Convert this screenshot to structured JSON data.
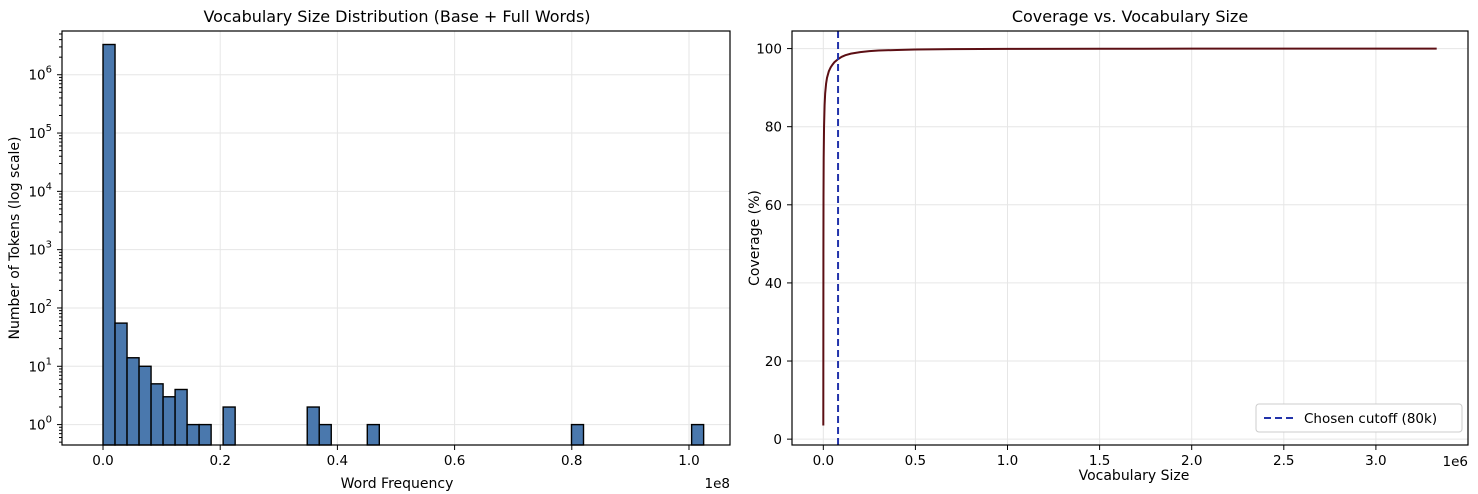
{
  "colors": {
    "bar_fill": "#4a78ad",
    "bar_edge": "#000000",
    "coverage_line": "#5c0f14",
    "cutoff_line": "#2233aa",
    "grid": "#e6e6e6"
  },
  "chart_data": [
    {
      "type": "bar",
      "title": "Vocabulary Size Distribution (Base + Full Words)",
      "xlabel": "Word Frequency",
      "ylabel": "Number of Tokens (log scale)",
      "x_offset_text": "1e8",
      "yscale": "log",
      "xlim": [
        -0.07,
        1.07
      ],
      "ylim_exp": [
        -0.35,
        6.75
      ],
      "grid": true,
      "x_ticks": [
        {
          "value": 0.0,
          "label": "0.0"
        },
        {
          "value": 0.2,
          "label": "0.2"
        },
        {
          "value": 0.4,
          "label": "0.4"
        },
        {
          "value": 0.6,
          "label": "0.6"
        },
        {
          "value": 0.8,
          "label": "0.8"
        },
        {
          "value": 1.0,
          "label": "1.0"
        }
      ],
      "y_ticks": [
        {
          "exp": 0,
          "base": "10",
          "sup": "0"
        },
        {
          "exp": 1,
          "base": "10",
          "sup": "1"
        },
        {
          "exp": 2,
          "base": "10",
          "sup": "2"
        },
        {
          "exp": 3,
          "base": "10",
          "sup": "3"
        },
        {
          "exp": 4,
          "base": "10",
          "sup": "4"
        },
        {
          "exp": 5,
          "base": "10",
          "sup": "5"
        },
        {
          "exp": 6,
          "base": "10",
          "sup": "6"
        }
      ],
      "bin_width": 0.0205,
      "bars": [
        {
          "x": 0.0,
          "count": 3300000
        },
        {
          "x": 0.0205,
          "count": 55
        },
        {
          "x": 0.041,
          "count": 14
        },
        {
          "x": 0.0615,
          "count": 10
        },
        {
          "x": 0.082,
          "count": 5
        },
        {
          "x": 0.1025,
          "count": 3
        },
        {
          "x": 0.123,
          "count": 4
        },
        {
          "x": 0.1435,
          "count": 1
        },
        {
          "x": 0.164,
          "count": 1
        },
        {
          "x": 0.205,
          "count": 2
        },
        {
          "x": 0.3485,
          "count": 2
        },
        {
          "x": 0.369,
          "count": 1
        },
        {
          "x": 0.451,
          "count": 1
        },
        {
          "x": 0.7995,
          "count": 1
        },
        {
          "x": 1.0045,
          "count": 1
        }
      ]
    },
    {
      "type": "line",
      "title": "Coverage vs. Vocabulary Size",
      "xlabel": "Vocabulary Size",
      "ylabel": "Coverage (%)",
      "x_offset_text": "1e6",
      "xlim": [
        -0.17,
        3.5
      ],
      "ylim": [
        -1.5,
        104.5
      ],
      "grid": true,
      "legend": {
        "label": "Chosen cutoff (80k)",
        "placement": "lower-right"
      },
      "x_ticks": [
        {
          "value": 0.0,
          "label": "0.0"
        },
        {
          "value": 0.5,
          "label": "0.5"
        },
        {
          "value": 1.0,
          "label": "1.0"
        },
        {
          "value": 1.5,
          "label": "1.5"
        },
        {
          "value": 2.0,
          "label": "2.0"
        },
        {
          "value": 2.5,
          "label": "2.5"
        },
        {
          "value": 3.0,
          "label": "3.0"
        }
      ],
      "y_ticks": [
        {
          "value": 0,
          "label": "0"
        },
        {
          "value": 20,
          "label": "20"
        },
        {
          "value": 40,
          "label": "40"
        },
        {
          "value": 60,
          "label": "60"
        },
        {
          "value": 80,
          "label": "80"
        },
        {
          "value": 100,
          "label": "100"
        }
      ],
      "cutoff_x": 0.08,
      "series": [
        {
          "x": [
            0.0,
            0.0005,
            0.001,
            0.002,
            0.004,
            0.007,
            0.01,
            0.015,
            0.02,
            0.03,
            0.04,
            0.05,
            0.06,
            0.08,
            0.1,
            0.12,
            0.15,
            0.2,
            0.25,
            0.3,
            0.4,
            0.5,
            0.7,
            1.0,
            1.5,
            2.0,
            2.5,
            3.0,
            3.33
          ],
          "y": [
            3.5,
            48,
            62,
            72,
            80,
            85.5,
            88.5,
            91,
            92.5,
            94.2,
            95.2,
            95.9,
            96.5,
            97.3,
            97.9,
            98.3,
            98.7,
            99.1,
            99.35,
            99.5,
            99.65,
            99.75,
            99.85,
            99.92,
            99.96,
            99.98,
            99.99,
            100.0,
            100.0
          ]
        }
      ]
    }
  ]
}
